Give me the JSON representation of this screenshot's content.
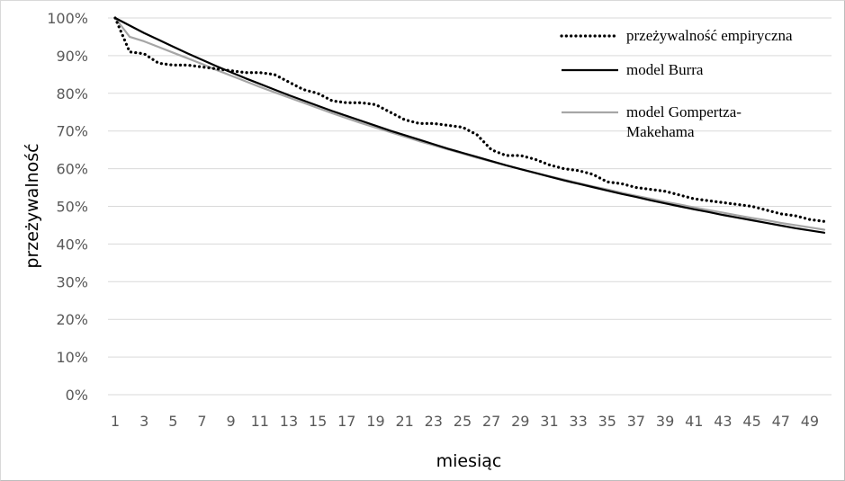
{
  "chart_data": {
    "type": "line",
    "xlabel": "miesiąc",
    "ylabel": "przeżywalność",
    "x": [
      1,
      2,
      3,
      4,
      5,
      6,
      7,
      8,
      9,
      10,
      11,
      12,
      13,
      14,
      15,
      16,
      17,
      18,
      19,
      20,
      21,
      22,
      23,
      24,
      25,
      26,
      27,
      28,
      29,
      30,
      31,
      32,
      33,
      34,
      35,
      36,
      37,
      38,
      39,
      40,
      41,
      42,
      43,
      44,
      45,
      46,
      47,
      48,
      49,
      50
    ],
    "xtick_labels": [
      "1",
      "3",
      "5",
      "7",
      "9",
      "11",
      "13",
      "15",
      "17",
      "19",
      "21",
      "23",
      "25",
      "27",
      "29",
      "31",
      "33",
      "35",
      "37",
      "39",
      "41",
      "43",
      "45",
      "47",
      "49"
    ],
    "ylim": [
      0,
      1
    ],
    "ytick_labels": [
      "0%",
      "10%",
      "20%",
      "30%",
      "40%",
      "50%",
      "60%",
      "70%",
      "80%",
      "90%",
      "100%"
    ],
    "gridlines": "horizontal",
    "legend_position": "top-right",
    "series": [
      {
        "name": "przeżywalność empiryczna",
        "style": "dotted",
        "color": "#000000",
        "values": [
          1.0,
          0.91,
          0.905,
          0.88,
          0.875,
          0.875,
          0.87,
          0.865,
          0.86,
          0.855,
          0.855,
          0.85,
          0.83,
          0.81,
          0.8,
          0.78,
          0.775,
          0.775,
          0.77,
          0.75,
          0.73,
          0.72,
          0.72,
          0.715,
          0.71,
          0.69,
          0.65,
          0.635,
          0.635,
          0.625,
          0.61,
          0.6,
          0.595,
          0.585,
          0.565,
          0.56,
          0.55,
          0.545,
          0.54,
          0.53,
          0.52,
          0.515,
          0.51,
          0.505,
          0.5,
          0.49,
          0.48,
          0.475,
          0.465,
          0.46
        ]
      },
      {
        "name": "model Burra",
        "style": "solid",
        "color": "#000000",
        "values": [
          1.0,
          0.98,
          0.96,
          0.942,
          0.924,
          0.906,
          0.889,
          0.872,
          0.856,
          0.84,
          0.825,
          0.81,
          0.795,
          0.781,
          0.767,
          0.753,
          0.74,
          0.727,
          0.714,
          0.701,
          0.689,
          0.677,
          0.665,
          0.653,
          0.642,
          0.631,
          0.62,
          0.609,
          0.599,
          0.589,
          0.579,
          0.569,
          0.56,
          0.551,
          0.542,
          0.533,
          0.525,
          0.516,
          0.508,
          0.5,
          0.492,
          0.485,
          0.477,
          0.47,
          0.463,
          0.456,
          0.449,
          0.442,
          0.436,
          0.43
        ]
      },
      {
        "name": "model Gompertza-Makehama",
        "style": "solid",
        "color": "#a6a6a6",
        "values": [
          1.0,
          0.95,
          0.938,
          0.923,
          0.908,
          0.893,
          0.878,
          0.862,
          0.847,
          0.832,
          0.817,
          0.803,
          0.789,
          0.775,
          0.761,
          0.747,
          0.734,
          0.721,
          0.709,
          0.697,
          0.685,
          0.673,
          0.662,
          0.651,
          0.64,
          0.629,
          0.619,
          0.609,
          0.599,
          0.589,
          0.58,
          0.571,
          0.562,
          0.553,
          0.545,
          0.536,
          0.528,
          0.52,
          0.512,
          0.505,
          0.497,
          0.49,
          0.483,
          0.476,
          0.469,
          0.463,
          0.456,
          0.45,
          0.444,
          0.438
        ]
      }
    ]
  }
}
